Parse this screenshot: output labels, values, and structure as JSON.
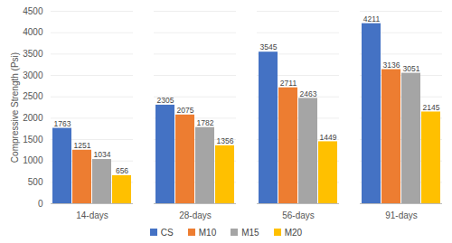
{
  "chart_data": {
    "type": "bar",
    "categories": [
      "14-days",
      "28-days",
      "56-days",
      "91-days"
    ],
    "series": [
      {
        "name": "CS",
        "color": "#4472c4",
        "values": [
          1763,
          2305,
          3545,
          4211
        ]
      },
      {
        "name": "M10",
        "color": "#ed7d31",
        "values": [
          1251,
          2075,
          2711,
          3136
        ]
      },
      {
        "name": "M15",
        "color": "#a5a5a5",
        "values": [
          1034,
          1782,
          2463,
          3051
        ]
      },
      {
        "name": "M20",
        "color": "#ffc000",
        "values": [
          656,
          1356,
          1449,
          2145
        ]
      }
    ],
    "y_label": "Compressive Strength (Psi)",
    "ylim": [
      0,
      4500
    ],
    "yticks": [
      0,
      500,
      1000,
      1500,
      2000,
      2500,
      3000,
      3500,
      4000,
      4500
    ],
    "grid": true,
    "data_labels": true,
    "legend": "bottom"
  }
}
